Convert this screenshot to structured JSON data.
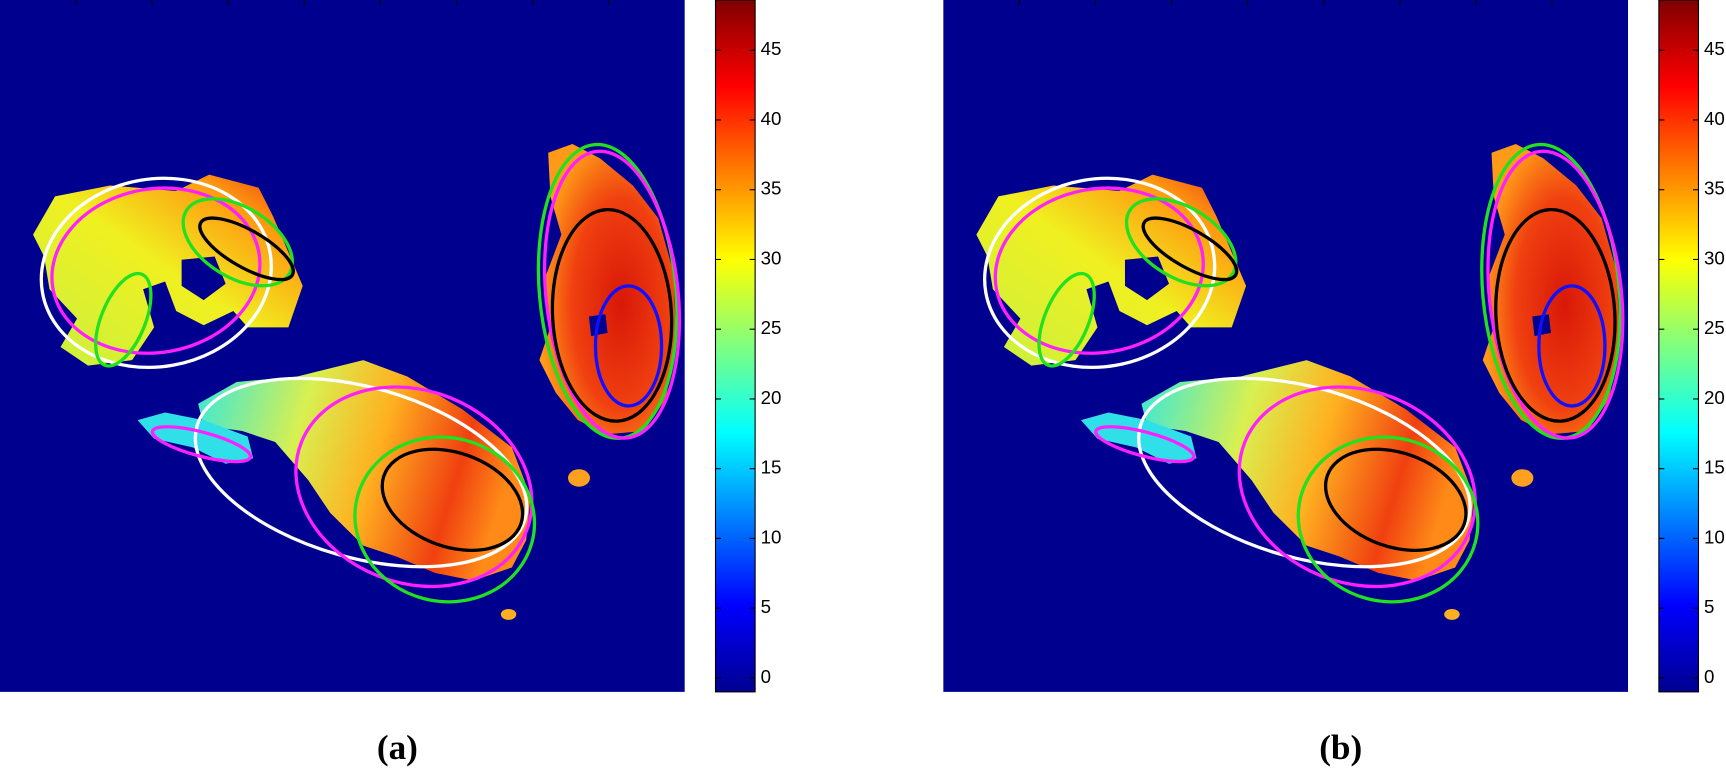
{
  "chart_data": [
    {
      "type": "heatmap",
      "caption": "(a)",
      "colormap": "jet",
      "clim": [
        -1,
        48.6
      ],
      "cticks": [
        0,
        5,
        10,
        15,
        20,
        25,
        30,
        35,
        40,
        45
      ]
    },
    {
      "type": "heatmap",
      "caption": "(b)",
      "colormap": "jet",
      "clim": [
        -1,
        48.6
      ],
      "cticks": [
        0,
        5,
        10,
        15,
        20,
        25,
        30,
        35,
        40,
        45
      ]
    }
  ]
}
